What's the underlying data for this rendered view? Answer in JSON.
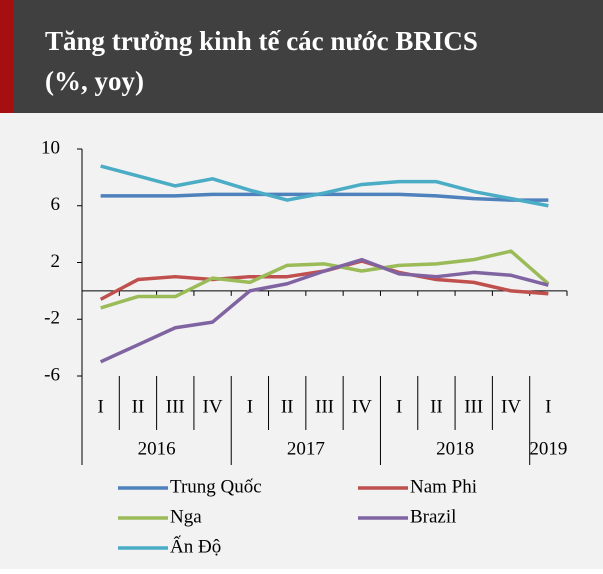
{
  "chart_data": {
    "type": "line",
    "title": [
      "Tăng trưởng kinh tế các nước BRICS",
      "(%, yoy)"
    ],
    "categories": [
      "I",
      "II",
      "III",
      "IV",
      "I",
      "II",
      "III",
      "IV",
      "I",
      "II",
      "III",
      "IV",
      "I"
    ],
    "year_groups": [
      {
        "label": "2016",
        "count": 4
      },
      {
        "label": "2017",
        "count": 4
      },
      {
        "label": "2018",
        "count": 4
      },
      {
        "label": "2019",
        "count": 1
      }
    ],
    "series": [
      {
        "name": "Trung Quốc",
        "color": "#4f81bd",
        "values": [
          6.7,
          6.7,
          6.7,
          6.8,
          6.8,
          6.8,
          6.8,
          6.8,
          6.8,
          6.7,
          6.5,
          6.4,
          6.4
        ]
      },
      {
        "name": "Nam Phi",
        "color": "#c0504d",
        "values": [
          -0.6,
          0.8,
          1.0,
          0.8,
          1.0,
          1.0,
          1.4,
          2.1,
          1.3,
          0.8,
          0.6,
          0.0,
          -0.2
        ]
      },
      {
        "name": "Nga",
        "color": "#9bbb59",
        "values": [
          -1.2,
          -0.4,
          -0.4,
          0.9,
          0.6,
          1.8,
          1.9,
          1.4,
          1.8,
          1.9,
          2.2,
          2.8,
          0.5
        ]
      },
      {
        "name": "Brazil",
        "color": "#8064a2",
        "values": [
          -5.0,
          -3.8,
          -2.6,
          -2.2,
          0.0,
          0.5,
          1.4,
          2.2,
          1.2,
          1.0,
          1.3,
          1.1,
          0.4
        ]
      },
      {
        "name": "Ấn Độ",
        "color": "#4bacc6",
        "values": [
          8.8,
          8.1,
          7.4,
          7.9,
          7.1,
          6.4,
          6.9,
          7.5,
          7.7,
          7.7,
          7.0,
          6.5,
          6.0
        ]
      }
    ],
    "ylim": [
      -6,
      10
    ],
    "yticks": [
      10,
      6,
      2,
      -2,
      -6
    ]
  }
}
